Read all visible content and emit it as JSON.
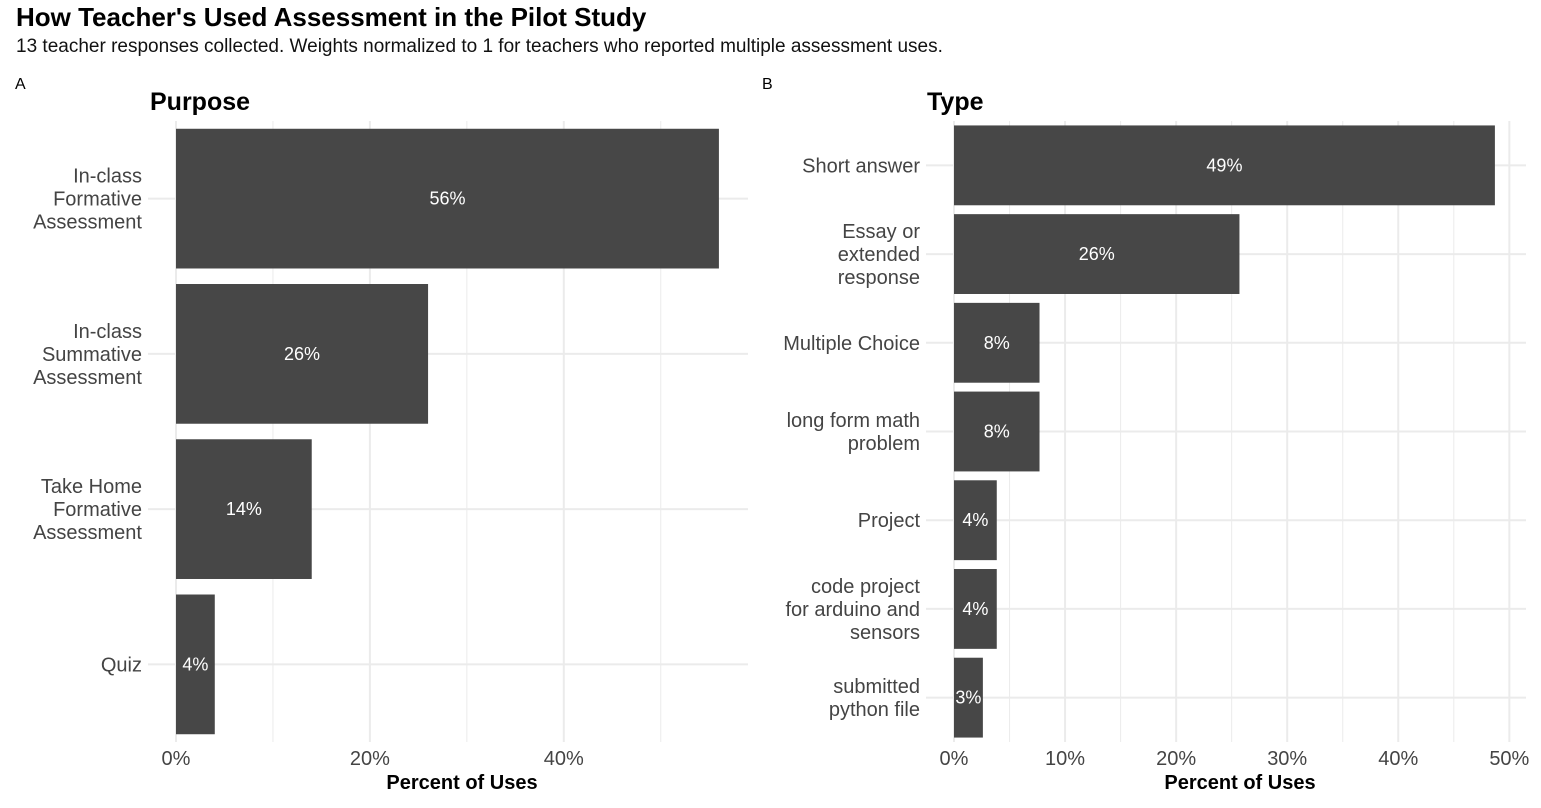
{
  "figure": {
    "title": "How Teacher's Used Assessment in the Pilot Study",
    "subtitle": "13 teacher responses collected. Weights normalized to 1 for teachers who reported multiple assessment uses."
  },
  "colors": {
    "bar": "#474747",
    "grid": "#ebebeb",
    "label": "#ffffff",
    "axis_text": "#444444"
  },
  "chart_data": [
    {
      "type": "bar",
      "orientation": "horizontal",
      "tag": "A",
      "title": "Purpose",
      "xlabel": "Percent of Uses",
      "ylabel": "",
      "categories": [
        "In-class\nFormative\nAssessment",
        "In-class\nSummative\nAssessment",
        "Take Home\nFormative\nAssessment",
        "Quiz"
      ],
      "values": [
        56,
        26,
        14,
        4
      ],
      "data_labels": [
        "56%",
        "26%",
        "14%",
        "4%"
      ],
      "xlim": [
        0,
        59
      ],
      "xticks": [
        0,
        20,
        40
      ],
      "xtick_labels": [
        "0%",
        "20%",
        "40%"
      ],
      "grid": true
    },
    {
      "type": "bar",
      "orientation": "horizontal",
      "tag": "B",
      "title": "Type",
      "xlabel": "Percent of Uses",
      "ylabel": "",
      "categories": [
        "Short answer",
        "Essay or\nextended\nresponse",
        "Multiple Choice",
        "long form math\nproblem",
        "Project",
        "code project\nfor arduino and\nsensors",
        "submitted\npython file"
      ],
      "values": [
        48.7,
        25.7,
        7.7,
        7.7,
        3.85,
        3.85,
        2.6
      ],
      "data_labels": [
        "49%",
        "26%",
        "8%",
        "8%",
        "4%",
        "4%",
        "3%"
      ],
      "xlim": [
        0,
        51.5
      ],
      "xticks": [
        0,
        10,
        20,
        30,
        40,
        50
      ],
      "xtick_labels": [
        "0%",
        "10%",
        "20%",
        "30%",
        "40%",
        "50%"
      ],
      "grid": true
    }
  ]
}
